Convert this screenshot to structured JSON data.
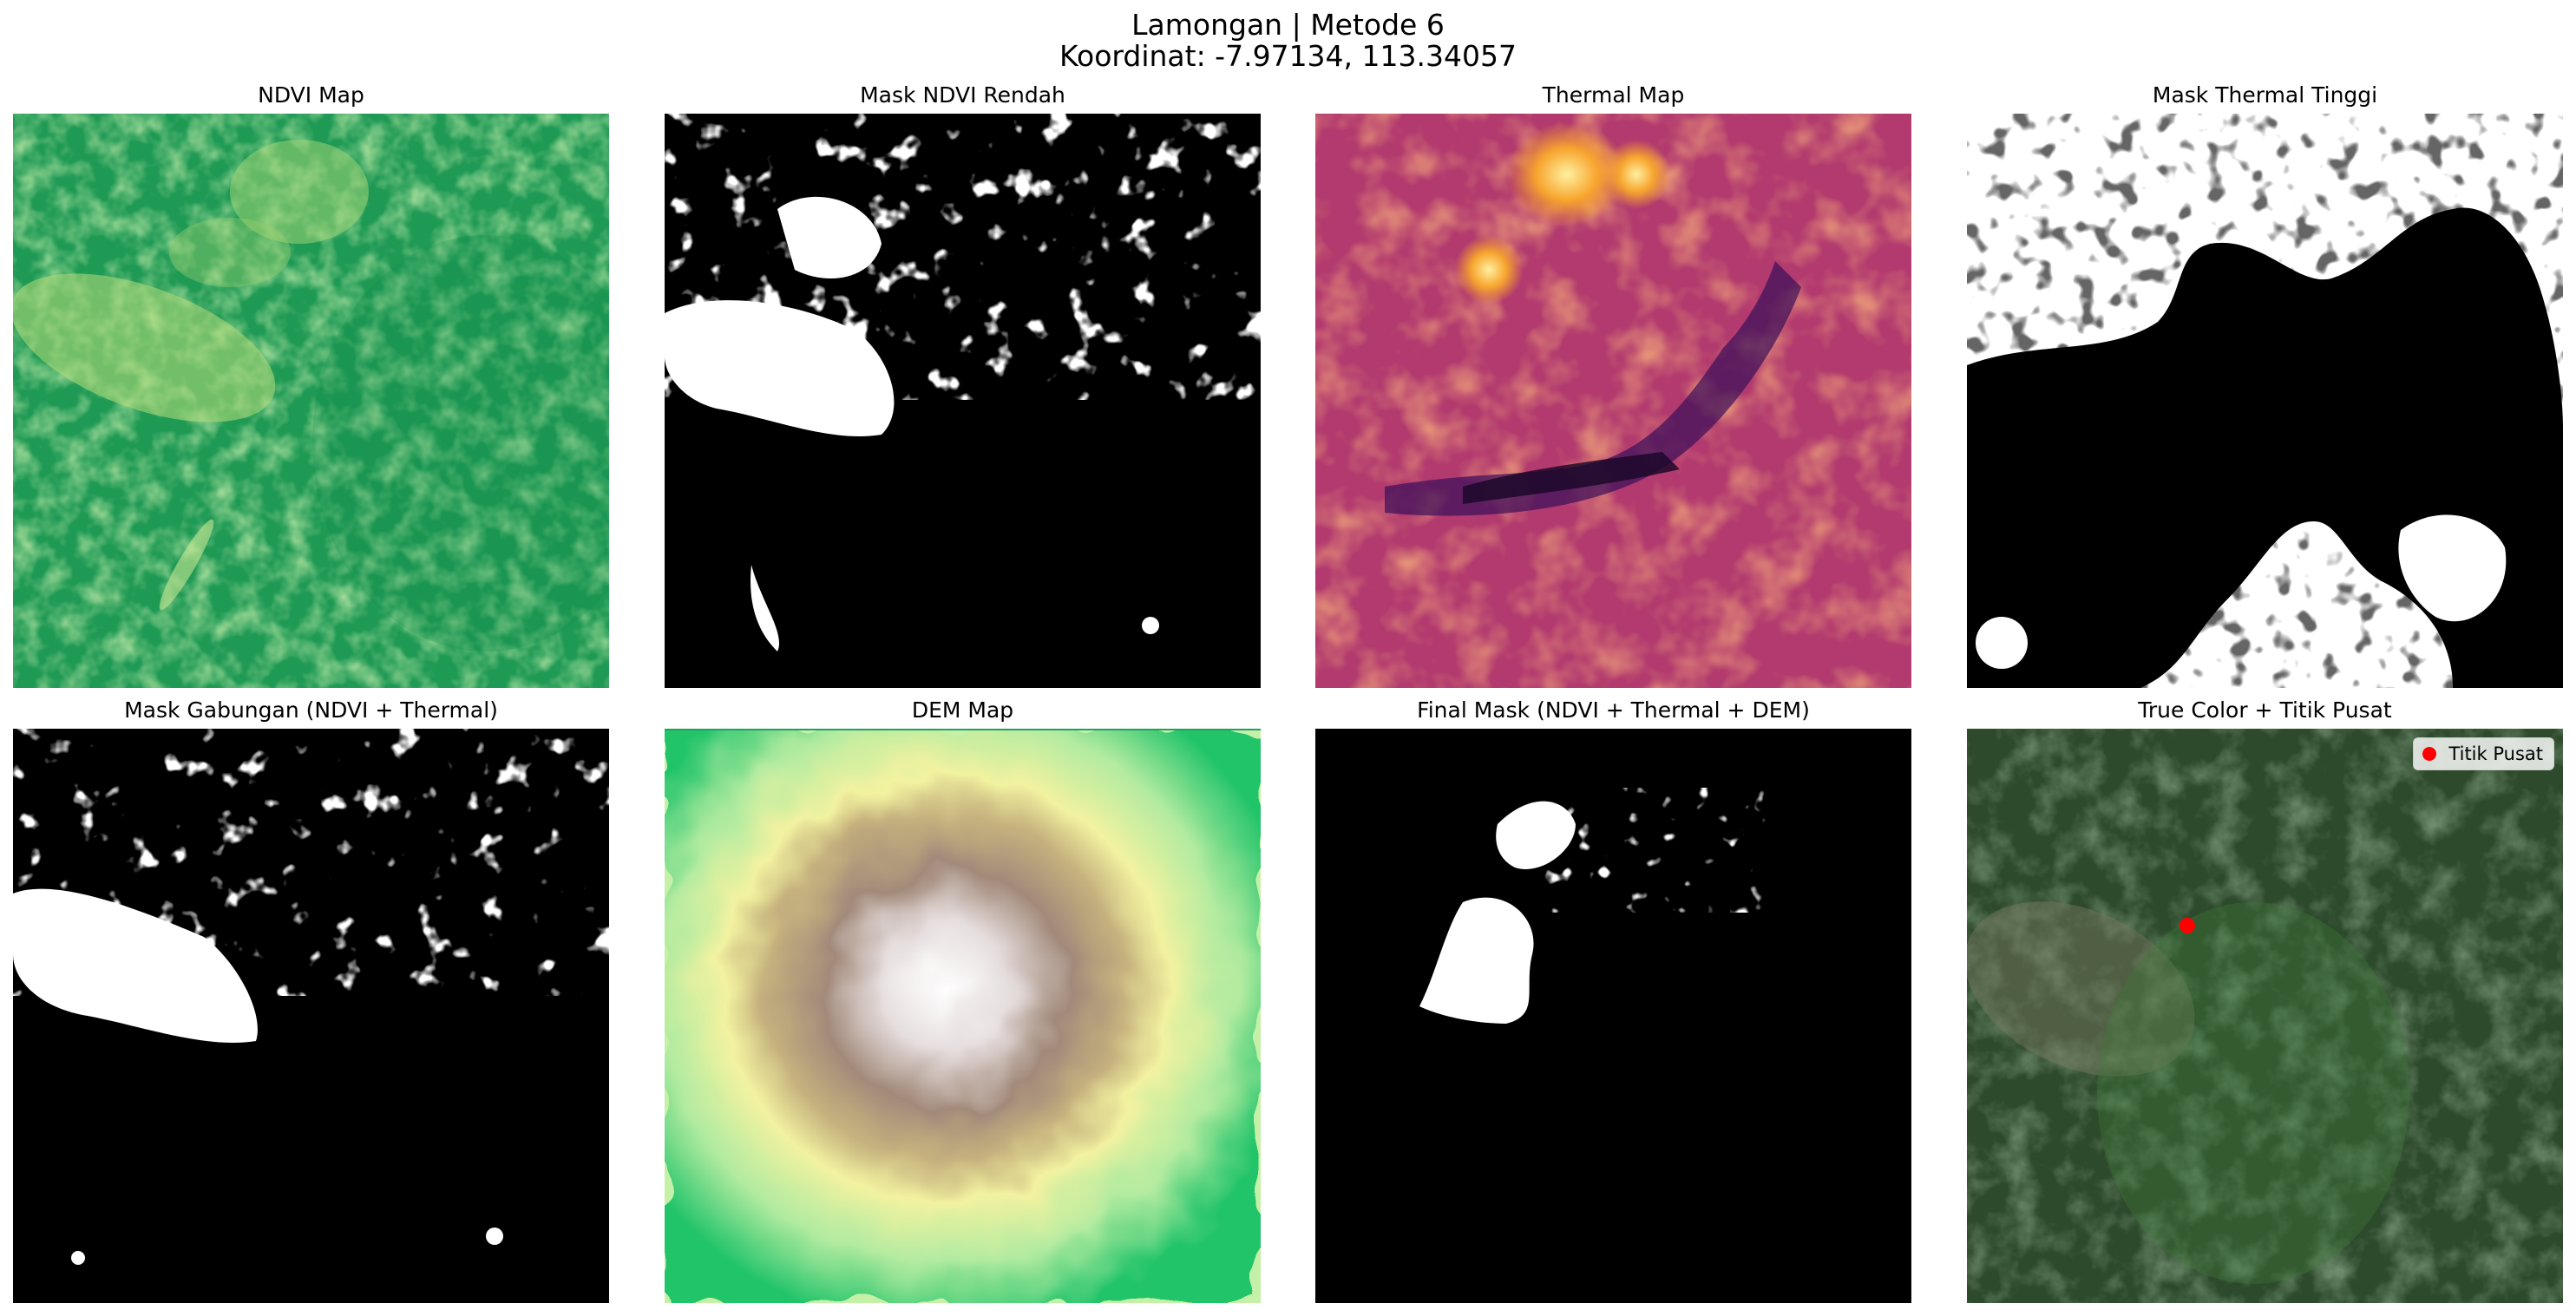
{
  "figure": {
    "title_line1": "Lamongan | Metode 6",
    "title_line2": "Koordinat: -7.97134, 113.34057"
  },
  "panels": [
    {
      "title": "NDVI Map"
    },
    {
      "title": "Mask NDVI Rendah"
    },
    {
      "title": "Thermal Map"
    },
    {
      "title": "Mask Thermal Tinggi"
    },
    {
      "title": "Mask Gabungan (NDVI + Thermal)"
    },
    {
      "title": "DEM Map"
    },
    {
      "title": "Final Mask (NDVI + Thermal + DEM)"
    },
    {
      "title": "True Color + Titik Pusat"
    }
  ],
  "legend": {
    "label": "Titik Pusat",
    "marker_color": "#ff0000",
    "marker": "red-dot-icon"
  },
  "colors": {
    "ndvi": "#1e9a55",
    "mask_fg": "#ffffff",
    "mask_bg": "#000000",
    "thermal_hot": "#fcd06a",
    "thermal_cold": "#2a0a4a",
    "dem_low": "#22c46a",
    "dem_high": "#ffffff"
  }
}
